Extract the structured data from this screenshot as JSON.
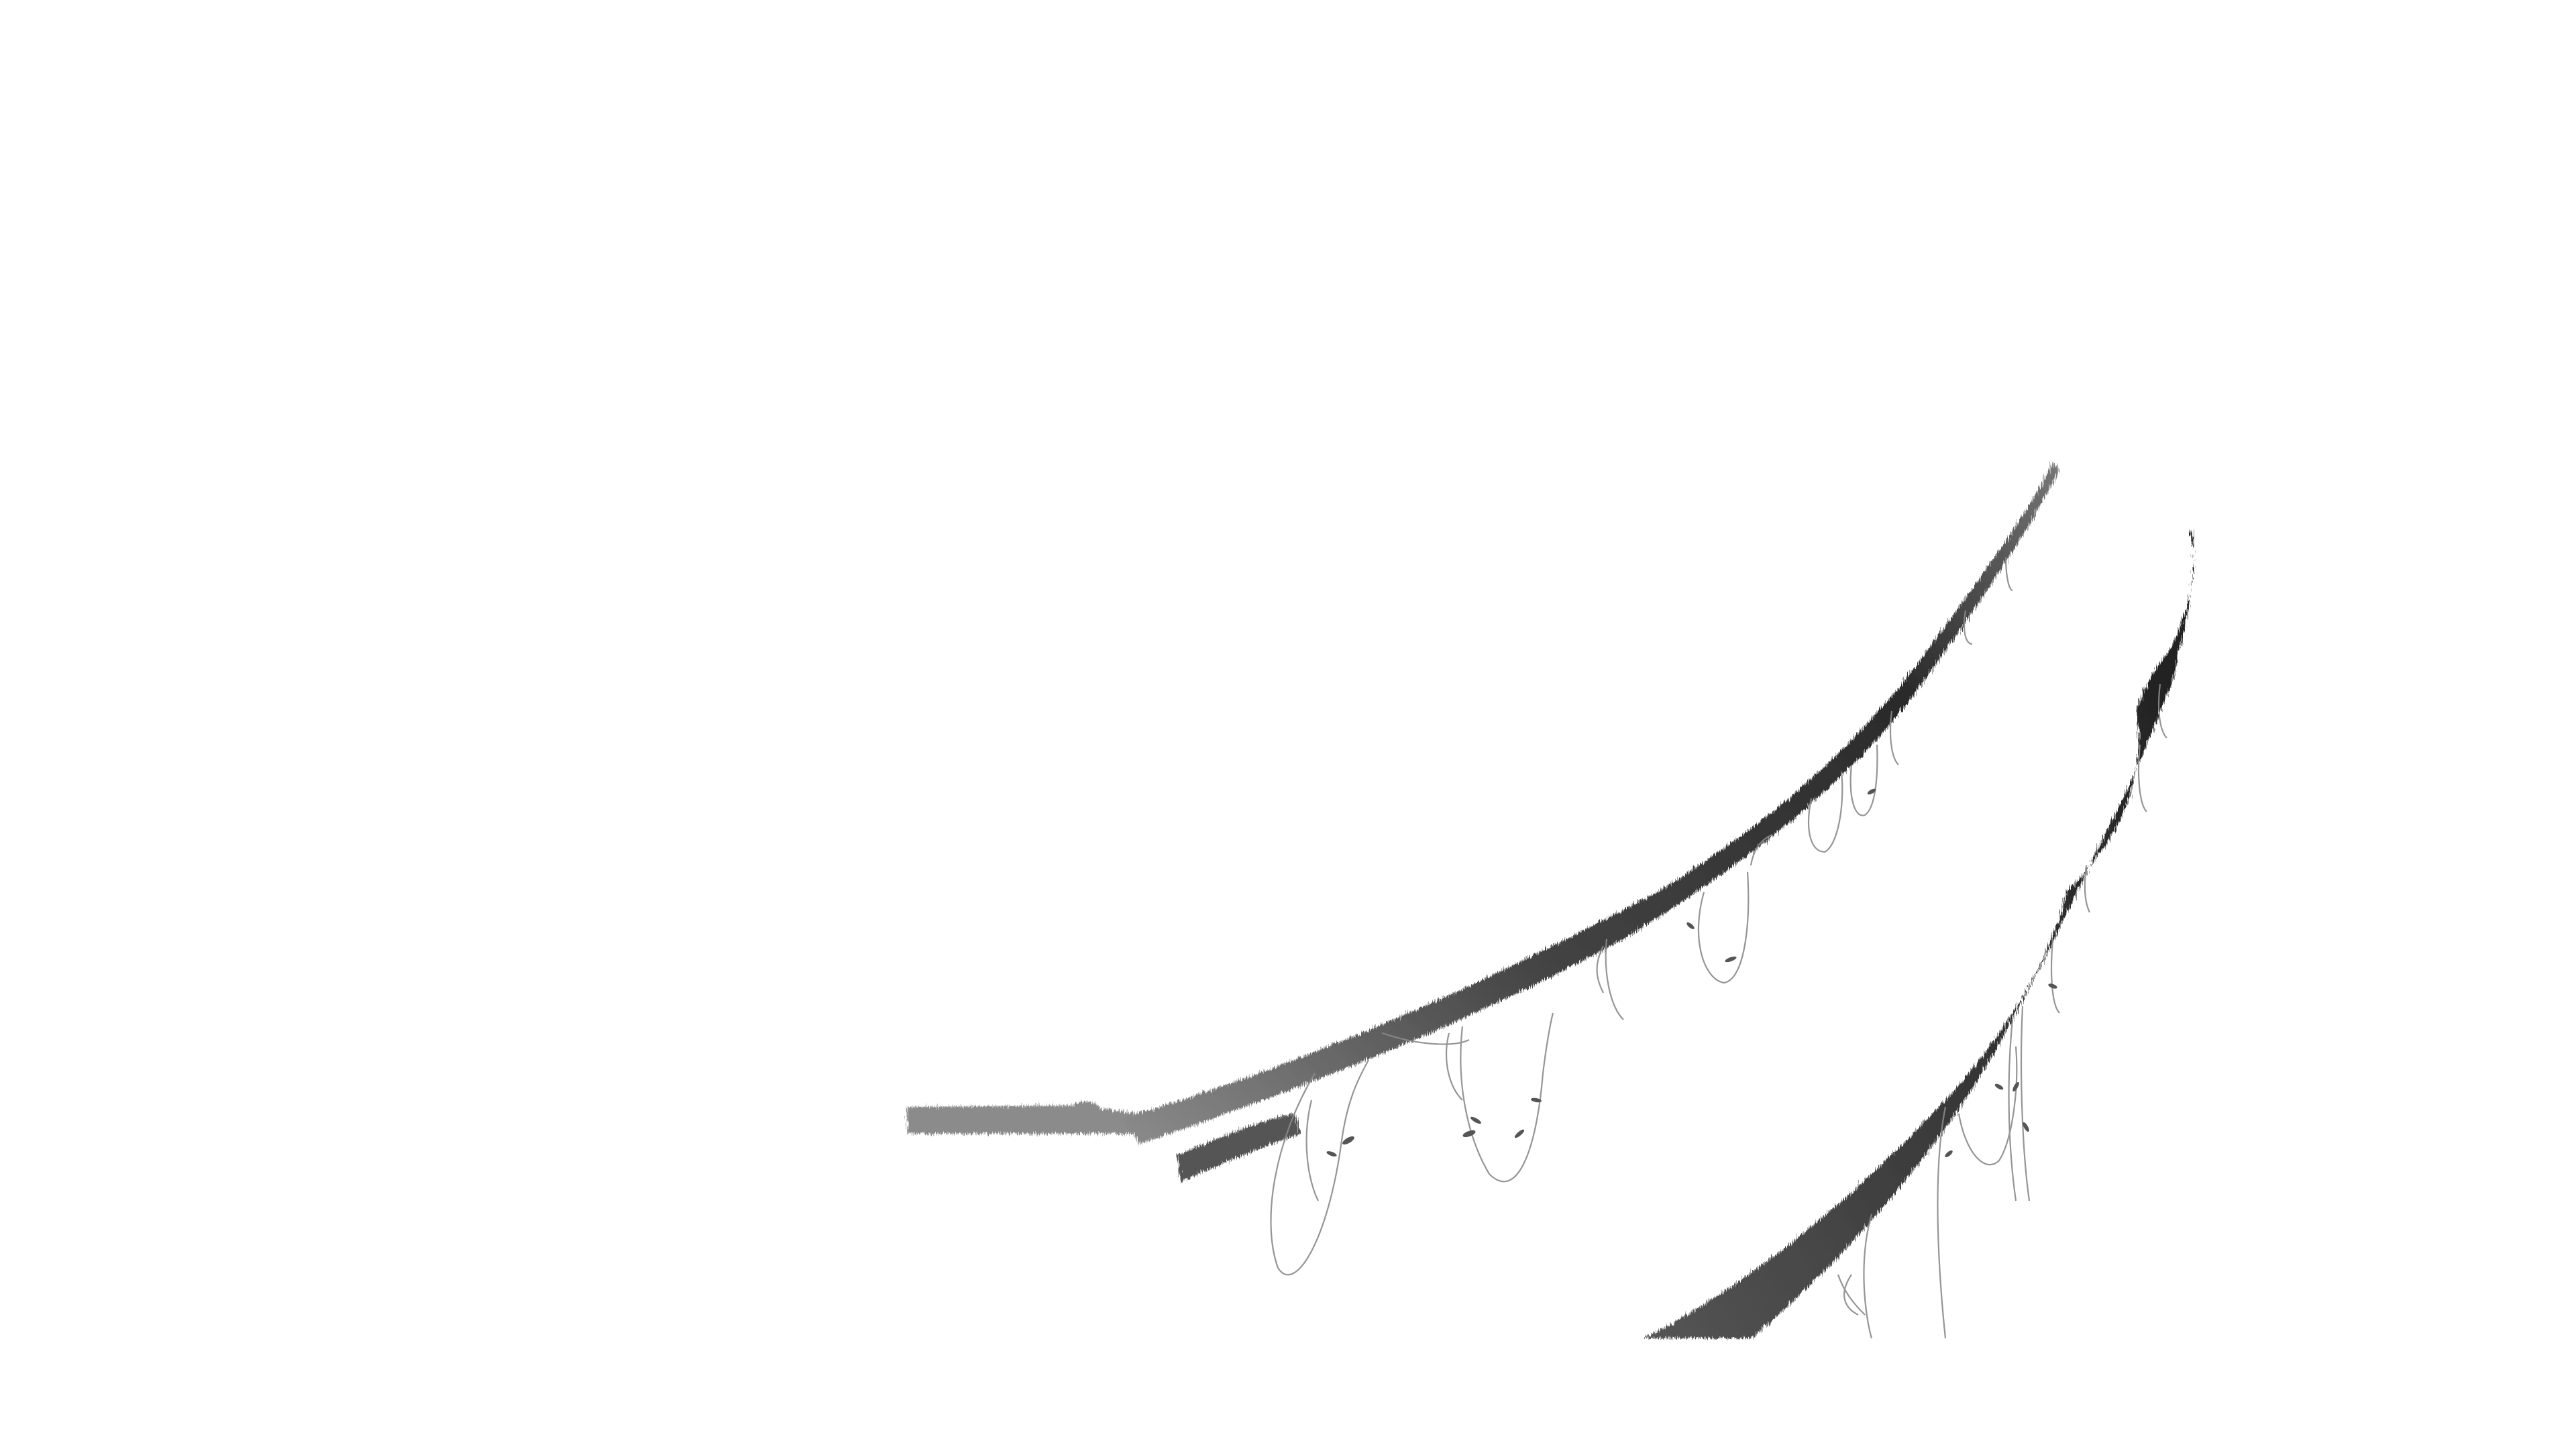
{
  "scene": {
    "background": "#ffffff",
    "subject": "ink-brush-branches",
    "branch_color_dark": "#2e2e2e",
    "branch_color_mid": "#6a6a6a",
    "vine_color": "#8a8a8a"
  }
}
